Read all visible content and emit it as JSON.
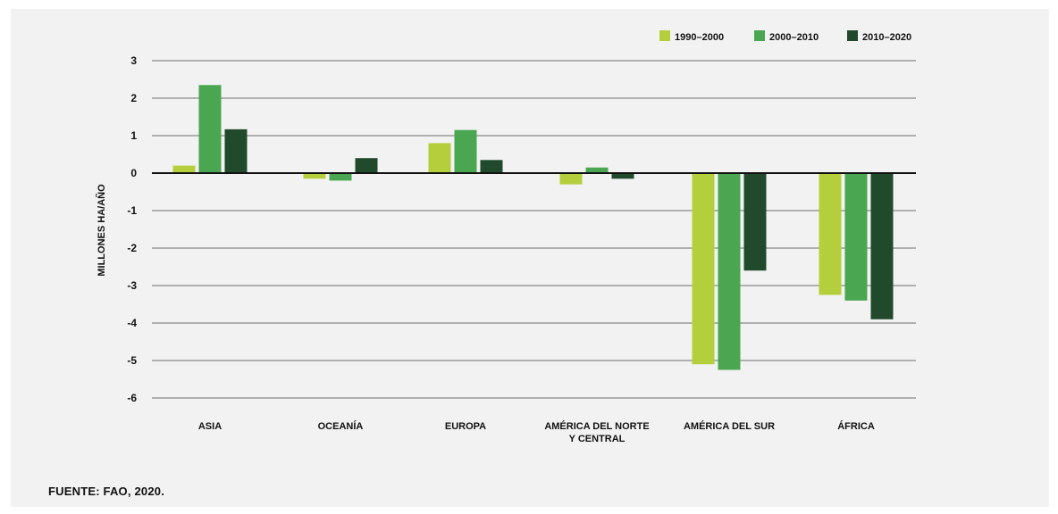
{
  "source": "FUENTE: FAO, 2020.",
  "chart_data": {
    "type": "bar",
    "ylabel": "MILLONES HA/AÑO",
    "xlabel": "",
    "ylim": [
      -6,
      3
    ],
    "yticks": [
      3,
      2,
      1,
      0,
      -1,
      -2,
      -3,
      -4,
      -5,
      -6
    ],
    "grid": true,
    "legend_position": "top-right",
    "categories": [
      [
        "ASIA"
      ],
      [
        "OCEANÍA"
      ],
      [
        "EUROPA"
      ],
      [
        "AMÉRICA DEL NORTE",
        "Y CENTRAL"
      ],
      [
        "AMÉRICA DEL SUR"
      ],
      [
        "ÁFRICA"
      ]
    ],
    "series": [
      {
        "name": "1990–2000",
        "color": "#b5cf3c",
        "values": [
          0.2,
          -0.15,
          0.8,
          -0.3,
          -5.1,
          -3.25
        ]
      },
      {
        "name": "2000–2010",
        "color": "#4aa650",
        "values": [
          2.35,
          -0.2,
          1.15,
          0.15,
          -5.25,
          -3.4
        ]
      },
      {
        "name": "2010–2020",
        "color": "#214a2c",
        "values": [
          1.17,
          0.4,
          0.35,
          -0.15,
          -2.6,
          -3.9
        ]
      }
    ]
  }
}
